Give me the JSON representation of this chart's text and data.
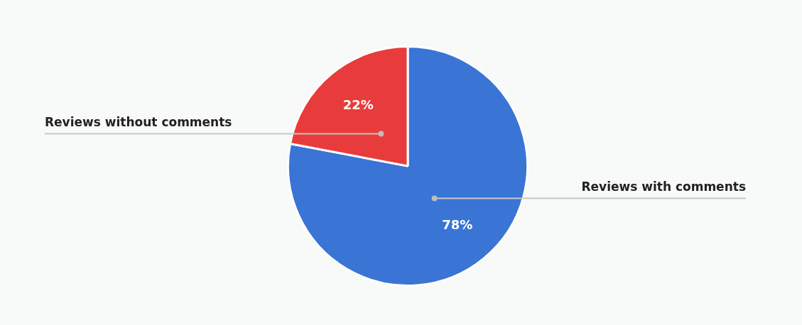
{
  "chart_data": {
    "type": "pie",
    "categories": [
      "Reviews with comments",
      "Reviews without comments"
    ],
    "values": [
      78,
      22
    ],
    "colors": [
      "#3a74d4",
      "#e83b3b"
    ],
    "value_labels": [
      "78%",
      "22%"
    ]
  }
}
